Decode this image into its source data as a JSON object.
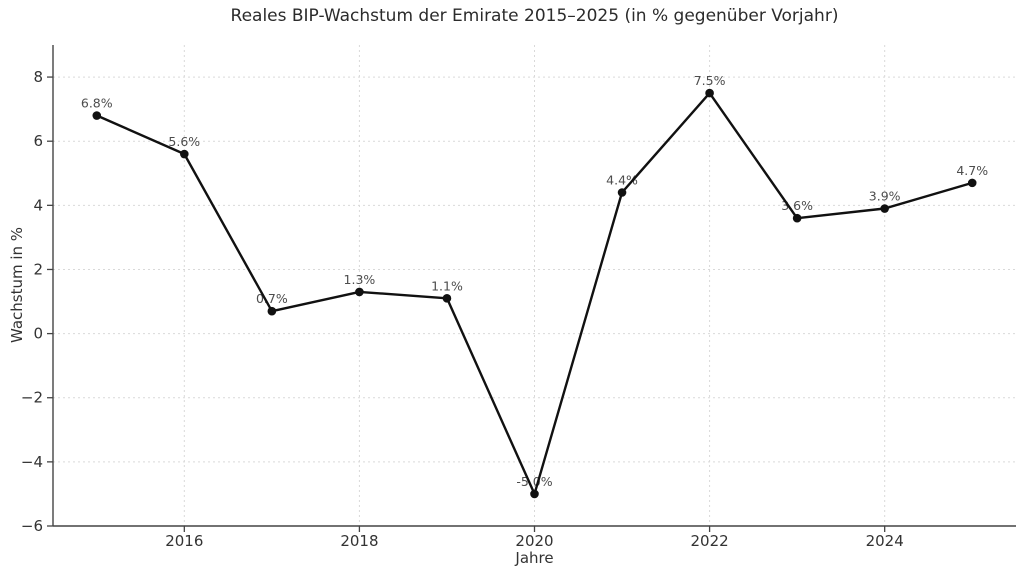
{
  "chart_data": {
    "type": "line",
    "title": "Reales BIP-Wachstum der Emirate 2015–2025 (in % gegenüber Vorjahr)",
    "xlabel": "Jahre",
    "ylabel": "Wachstum in %",
    "x": [
      2015,
      2016,
      2017,
      2018,
      2019,
      2020,
      2021,
      2022,
      2023,
      2024,
      2025
    ],
    "values": [
      6.8,
      5.6,
      0.7,
      1.3,
      1.1,
      -5.0,
      4.4,
      7.5,
      3.6,
      3.9,
      4.7
    ],
    "point_labels": [
      "6.8%",
      "5.6%",
      "0.7%",
      "1.3%",
      "1.1%",
      "-5.0%",
      "4.4%",
      "7.5%",
      "3.6%",
      "3.9%",
      "4.7%"
    ],
    "xlim": [
      2014.5,
      2025.5
    ],
    "ylim": [
      -6,
      9
    ],
    "xticks": [
      2016,
      2018,
      2020,
      2022,
      2024
    ],
    "xtick_labels": [
      "2016",
      "2018",
      "2020",
      "2022",
      "2024"
    ],
    "yticks": [
      8,
      6,
      4,
      2,
      0,
      -2,
      -4,
      -6
    ],
    "ytick_labels": [
      "8",
      "6",
      "4",
      "2",
      "0",
      "−2",
      "−4",
      "−6"
    ],
    "grid": true,
    "legend": null,
    "colors": {
      "line": "#111111",
      "marker": "#111111",
      "grid": "#d9d9d9",
      "spine": "#444444",
      "tick_label": "#333333",
      "data_label": "#4d4d4d",
      "title": "#2b2b2b",
      "background": "#ffffff"
    }
  }
}
